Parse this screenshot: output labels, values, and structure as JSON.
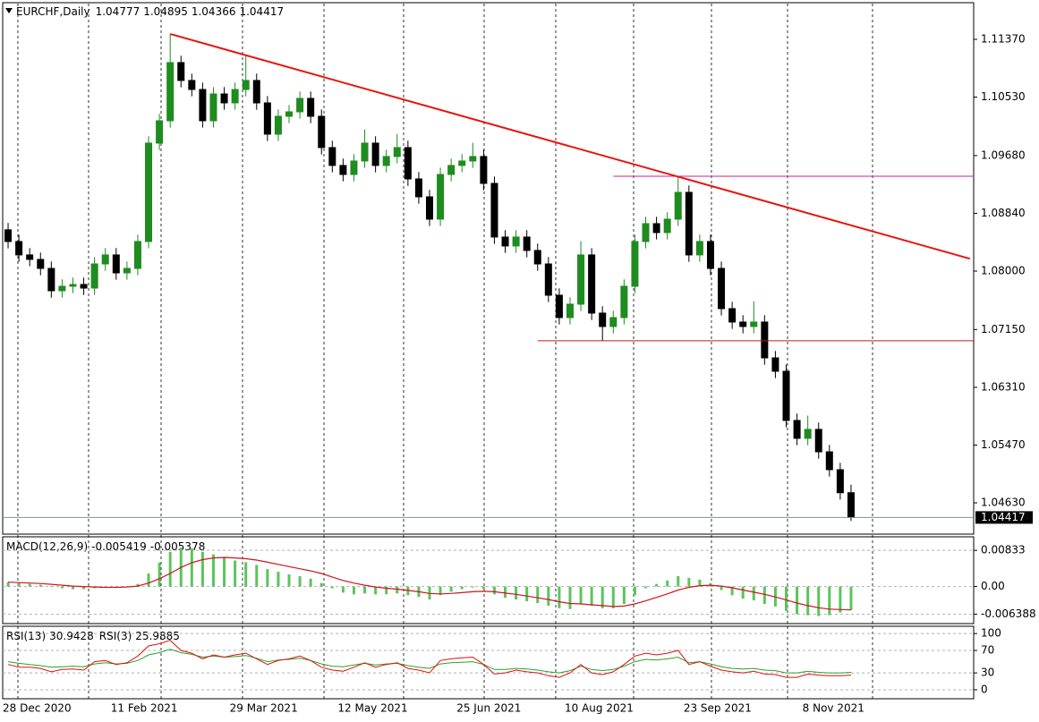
{
  "chart_data": [
    {
      "type": "candlestick",
      "title": "EURCHF,Daily",
      "categories": [
        "28 Dec 2020",
        null,
        null,
        null,
        null,
        null,
        null,
        null,
        null,
        null,
        "11 Feb 2021",
        null,
        null,
        null,
        null,
        null,
        null,
        null,
        null,
        null,
        null,
        "29 Mar 2021",
        null,
        null,
        null,
        null,
        null,
        null,
        null,
        null,
        null,
        "12 May 2021",
        null,
        null,
        null,
        null,
        null,
        null,
        null,
        null,
        null,
        null,
        "25 Jun 2021",
        null,
        null,
        null,
        null,
        null,
        null,
        null,
        null,
        null,
        "10 Aug 2021",
        null,
        null,
        null,
        null,
        null,
        null,
        null,
        null,
        null,
        null,
        "23 Sep 2021",
        null,
        null,
        null,
        null,
        null,
        null,
        null,
        null,
        null,
        null,
        "8 Nov 2021",
        null,
        null,
        null,
        null
      ],
      "open": [
        1.086,
        1.0843,
        1.08235,
        1.0817,
        1.08039,
        1.07714,
        1.07779,
        1.07805,
        1.07753,
        1.08104,
        1.08235,
        1.07974,
        1.08039,
        1.0843,
        1.09861,
        1.10186,
        1.11032,
        1.10772,
        1.10641,
        1.10186,
        1.10576,
        1.10446,
        1.10641,
        1.10772,
        1.10446,
        1.09991,
        1.10251,
        1.10316,
        1.10511,
        1.10251,
        1.09796,
        1.09536,
        1.09405,
        1.09601,
        1.09861,
        1.09536,
        1.09666,
        1.09796,
        1.0934,
        1.0908,
        1.08755,
        1.09405,
        1.09536,
        1.09601,
        1.09666,
        1.09275,
        1.08495,
        1.08365,
        1.08495,
        1.083,
        1.08104,
        1.07649,
        1.07324,
        1.07519,
        1.08235,
        1.07389,
        1.07194,
        1.07324,
        1.07779,
        1.0843,
        1.0869,
        1.0856,
        1.08755,
        1.09145,
        1.08235,
        1.0843,
        1.08039,
        1.07454,
        1.07259,
        1.07194,
        1.07259,
        1.06738,
        1.06543,
        1.05828,
        1.05568,
        1.05698,
        1.05372,
        1.05112,
        1.04777
      ],
      "high": [
        1.087,
        1.0853,
        1.08335,
        1.0827,
        1.08139,
        1.07879,
        1.07905,
        1.07905,
        1.08204,
        1.08335,
        1.08335,
        1.08139,
        1.0853,
        1.09961,
        1.10286,
        1.11448,
        1.11132,
        1.10872,
        1.10741,
        1.10676,
        1.10676,
        1.10741,
        1.11132,
        1.10872,
        1.10546,
        1.10351,
        1.10416,
        1.10611,
        1.10611,
        1.10351,
        1.09896,
        1.09636,
        1.09701,
        1.10061,
        1.09961,
        1.09766,
        1.09996,
        1.09896,
        1.0944,
        1.0918,
        1.09505,
        1.09636,
        1.09701,
        1.09866,
        1.09766,
        1.09375,
        1.08595,
        1.08595,
        1.08595,
        1.084,
        1.08204,
        1.07749,
        1.07619,
        1.08435,
        1.08335,
        1.07489,
        1.07424,
        1.07879,
        1.0853,
        1.0879,
        1.0879,
        1.08855,
        1.09379,
        1.09245,
        1.0853,
        1.0853,
        1.08139,
        1.07554,
        1.07359,
        1.07559,
        1.07359,
        1.06838,
        1.06643,
        1.05928,
        1.05898,
        1.05798,
        1.05472,
        1.05212,
        1.04895
      ],
      "low": [
        1.0833,
        1.08135,
        1.0807,
        1.07939,
        1.07614,
        1.07614,
        1.07679,
        1.07653,
        1.07653,
        1.08004,
        1.07874,
        1.07874,
        1.07939,
        1.0833,
        1.09761,
        1.10086,
        1.10672,
        1.10541,
        1.10086,
        1.10086,
        1.10346,
        1.10346,
        1.10541,
        1.10346,
        1.09891,
        1.09891,
        1.10151,
        1.10216,
        1.10151,
        1.09696,
        1.09436,
        1.09305,
        1.09305,
        1.09501,
        1.09436,
        1.09436,
        1.09566,
        1.0924,
        1.0898,
        1.08655,
        1.08655,
        1.09305,
        1.09436,
        1.09501,
        1.09175,
        1.08395,
        1.08265,
        1.08265,
        1.082,
        1.08004,
        1.07549,
        1.07224,
        1.07224,
        1.07419,
        1.07289,
        1.06986,
        1.07094,
        1.07224,
        1.07679,
        1.0833,
        1.0846,
        1.0846,
        1.08655,
        1.08135,
        1.08135,
        1.07939,
        1.07354,
        1.07159,
        1.07094,
        1.07094,
        1.06638,
        1.06443,
        1.05728,
        1.05468,
        1.05468,
        1.05272,
        1.05012,
        1.04677,
        1.04366
      ],
      "close": [
        1.0843,
        1.08235,
        1.0817,
        1.08039,
        1.07714,
        1.07779,
        1.07805,
        1.07753,
        1.08104,
        1.08235,
        1.07974,
        1.08039,
        1.0843,
        1.09861,
        1.10186,
        1.11032,
        1.10772,
        1.10641,
        1.10186,
        1.10576,
        1.10446,
        1.10641,
        1.10772,
        1.10446,
        1.09991,
        1.10251,
        1.10316,
        1.10511,
        1.10251,
        1.09796,
        1.09536,
        1.09405,
        1.09601,
        1.09861,
        1.09536,
        1.09666,
        1.09796,
        1.0934,
        1.0908,
        1.08755,
        1.09405,
        1.09536,
        1.09601,
        1.09666,
        1.09275,
        1.08495,
        1.08365,
        1.08495,
        1.083,
        1.08104,
        1.07649,
        1.07324,
        1.07519,
        1.08235,
        1.07389,
        1.07194,
        1.07324,
        1.07779,
        1.0843,
        1.0869,
        1.0856,
        1.08755,
        1.09145,
        1.08235,
        1.0843,
        1.08039,
        1.07454,
        1.07259,
        1.07194,
        1.07259,
        1.06738,
        1.06543,
        1.05828,
        1.05568,
        1.05698,
        1.05372,
        1.05112,
        1.04777,
        1.04417
      ],
      "up_color": "#1e8c1e",
      "down_color": "#000000",
      "ylim": [
        1.04175,
        1.11903
      ],
      "yticks": [
        {
          "value": 1.1137,
          "label": "1.11370"
        },
        {
          "value": 1.1053,
          "label": "1.10530"
        },
        {
          "value": 1.0968,
          "label": "1.09680"
        },
        {
          "value": 1.0884,
          "label": "1.08840"
        },
        {
          "value": 1.08,
          "label": "1.08000"
        },
        {
          "value": 1.0715,
          "label": "1.07150"
        },
        {
          "value": 1.0631,
          "label": "1.06310"
        },
        {
          "value": 1.0547,
          "label": "1.05470"
        },
        {
          "value": 1.0463,
          "label": "1.04630"
        }
      ],
      "levels": [
        {
          "value": 1.06986,
          "from": 49,
          "color": "#d0101e"
        },
        {
          "value": 1.09379,
          "from": 56,
          "color": "#c02690"
        }
      ],
      "trendline": {
        "x": [
          15,
          89
        ],
        "values": [
          1.11448,
          1.0818
        ],
        "color": "#e8140c"
      }
    },
    {
      "type": "macd",
      "title": "MACD(12,26,9)",
      "series": [
        {
          "style": "bar",
          "color": "#5cc45c",
          "values": [
            0.001,
            0.0008,
            0.0006,
            0.0004,
            0.0,
            -0.0004,
            -0.0006,
            -0.0006,
            -0.0004,
            -0.0002,
            -0.0002,
            0.0,
            0.0006,
            0.003,
            0.0055,
            0.008,
            0.009,
            0.0088,
            0.008,
            0.0074,
            0.0066,
            0.006,
            0.0056,
            0.005,
            0.004,
            0.0034,
            0.0028,
            0.0024,
            0.0018,
            0.0008,
            -0.0004,
            -0.0014,
            -0.0018,
            -0.0016,
            -0.0018,
            -0.0018,
            -0.0016,
            -0.002,
            -0.0024,
            -0.003,
            -0.002,
            -0.0012,
            -0.0006,
            -0.0002,
            -0.0006,
            -0.0018,
            -0.0026,
            -0.003,
            -0.0034,
            -0.0038,
            -0.0044,
            -0.005,
            -0.0052,
            -0.004,
            -0.0044,
            -0.005,
            -0.005,
            -0.004,
            -0.002,
            -0.0004,
            0.0006,
            0.0014,
            0.0024,
            0.002,
            0.0016,
            0.0008,
            -0.0008,
            -0.002,
            -0.0028,
            -0.0032,
            -0.004,
            -0.0046,
            -0.0056,
            -0.0064,
            -0.0066,
            -0.0068,
            -0.0066,
            -0.006,
            -0.005419
          ]
        },
        {
          "style": "line",
          "color": "#d0141e",
          "values": [
            0.001,
            0.0009,
            0.0008,
            0.0007,
            0.0005,
            0.0003,
            0.0001,
            0.0,
            -0.0001,
            -0.0002,
            -0.0002,
            -0.0001,
            0.0001,
            0.0008,
            0.0018,
            0.003,
            0.0044,
            0.0055,
            0.0062,
            0.0066,
            0.0067,
            0.0066,
            0.0064,
            0.0061,
            0.0056,
            0.0051,
            0.0046,
            0.0041,
            0.0036,
            0.003,
            0.0022,
            0.0014,
            0.0008,
            0.0003,
            -0.0001,
            -0.0004,
            -0.0006,
            -0.0009,
            -0.0012,
            -0.0016,
            -0.0017,
            -0.0016,
            -0.0014,
            -0.0012,
            -0.0011,
            -0.0012,
            -0.0015,
            -0.0018,
            -0.0022,
            -0.0026,
            -0.003,
            -0.0035,
            -0.0039,
            -0.004,
            -0.0042,
            -0.0044,
            -0.0046,
            -0.0045,
            -0.004,
            -0.0033,
            -0.0025,
            -0.0017,
            -0.0008,
            -0.0002,
            0.0002,
            0.0003,
            0.0001,
            -0.0003,
            -0.0008,
            -0.0013,
            -0.0018,
            -0.0024,
            -0.0031,
            -0.0038,
            -0.0044,
            -0.0049,
            -0.0052,
            -0.0053,
            -0.005378
          ]
        }
      ],
      "ylim": [
        -0.008538,
        0.011454
      ],
      "yticks": [
        0.00833,
        {
          "value": 0,
          "label": "0.00"
        },
        -0.006388
      ]
    },
    {
      "type": "line",
      "series": [
        {
          "name": "RSI(13)",
          "color": "#2ca02c",
          "values": [
            50,
            47,
            45,
            43,
            40,
            41,
            42,
            41,
            46,
            48,
            46,
            47,
            52,
            62,
            66,
            72,
            66,
            63,
            58,
            60,
            58,
            59,
            61,
            56,
            50,
            53,
            54,
            56,
            52,
            46,
            42,
            41,
            44,
            47,
            44,
            46,
            47,
            43,
            40,
            38,
            46,
            48,
            49,
            50,
            45,
            36,
            36,
            38,
            37,
            35,
            32,
            30,
            34,
            42,
            36,
            34,
            36,
            42,
            50,
            54,
            53,
            55,
            58,
            48,
            50,
            46,
            41,
            38,
            37,
            38,
            35,
            34,
            30,
            30,
            33,
            31,
            30,
            30,
            30.9428
          ]
        },
        {
          "name": "RSI(3)",
          "color": "#e01010",
          "values": [
            45,
            40,
            40,
            38,
            32,
            36,
            37,
            35,
            50,
            52,
            45,
            48,
            60,
            78,
            82,
            88,
            70,
            65,
            55,
            62,
            58,
            62,
            65,
            55,
            45,
            52,
            55,
            60,
            52,
            40,
            35,
            33,
            40,
            48,
            40,
            45,
            48,
            38,
            35,
            30,
            52,
            55,
            57,
            58,
            45,
            28,
            30,
            35,
            32,
            30,
            25,
            22,
            30,
            45,
            30,
            27,
            32,
            45,
            60,
            65,
            62,
            65,
            70,
            45,
            50,
            42,
            35,
            32,
            30,
            33,
            28,
            27,
            22,
            22,
            28,
            26,
            25,
            25,
            25.9885
          ]
        }
      ],
      "ylim": [
        -16,
        113
      ],
      "yticks": [
        100,
        70,
        30,
        0
      ]
    }
  ]
}
